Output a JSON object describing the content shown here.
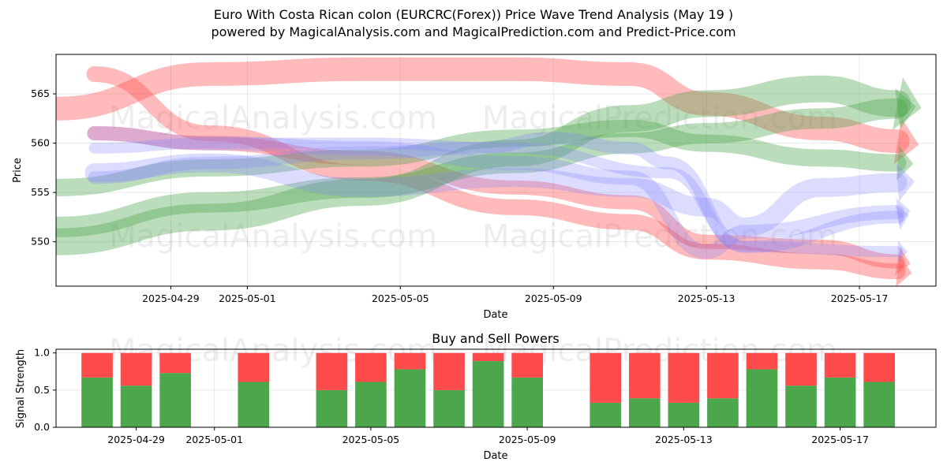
{
  "title_line1": "Euro With Costa Rican colon (EURCRC(Forex)) Price Wave Trend Analysis (May 19 )",
  "title_line2": "powered by MagicalAnalysis.com and MagicalPrediction.com and Predict-Price.com",
  "watermarks": [
    "MagicalAnalysis.com",
    "MagicalPrediction.com"
  ],
  "colors": {
    "red": "#ff4b4b",
    "green": "#4ca64c",
    "blue": "#8080ff"
  },
  "chart_data": [
    {
      "type": "line",
      "title": "",
      "xlabel": "Date",
      "ylabel": "Price",
      "x_ticks": [
        "2025-04-29",
        "2025-05-01",
        "2025-05-05",
        "2025-05-09",
        "2025-05-13",
        "2025-05-17"
      ],
      "y_ticks": [
        550,
        555,
        560,
        565
      ],
      "xlim": [
        "2025-04-26",
        "2025-05-19"
      ],
      "ylim": [
        545.5,
        569
      ],
      "grid": true,
      "series": [
        {
          "color": "red",
          "x": [
            "2025-04-26",
            "2025-04-30",
            "2025-05-04",
            "2025-05-08",
            "2025-05-11",
            "2025-05-13",
            "2025-05-16",
            "2025-05-18"
          ],
          "y": [
            563.5,
            567,
            567.5,
            567.5,
            567,
            564,
            561.5,
            560.2
          ]
        },
        {
          "color": "red",
          "x": [
            "2025-04-27",
            "2025-04-30",
            "2025-05-04",
            "2025-05-08",
            "2025-05-11",
            "2025-05-13",
            "2025-05-16",
            "2025-05-18"
          ],
          "y": [
            567,
            561,
            557,
            553.5,
            552,
            549,
            548,
            547
          ]
        },
        {
          "color": "red",
          "x": [
            "2025-04-27",
            "2025-04-30",
            "2025-05-04",
            "2025-05-08",
            "2025-05-11",
            "2025-05-13",
            "2025-05-16",
            "2025-05-18"
          ],
          "y": [
            561,
            560,
            558.5,
            555.5,
            554,
            550,
            549.5,
            548
          ]
        },
        {
          "color": "green",
          "x": [
            "2025-04-26",
            "2025-04-30",
            "2025-05-04",
            "2025-05-08",
            "2025-05-11",
            "2025-05-13",
            "2025-05-16",
            "2025-05-18"
          ],
          "y": [
            551.5,
            554,
            555.5,
            558,
            560,
            561,
            562.5,
            563.5
          ]
        },
        {
          "color": "green",
          "x": [
            "2025-04-26",
            "2025-04-30",
            "2025-05-04",
            "2025-05-08",
            "2025-05-11",
            "2025-05-13",
            "2025-05-16",
            "2025-05-18"
          ],
          "y": [
            550,
            552.5,
            555,
            559,
            562.5,
            564,
            565.5,
            564
          ]
        },
        {
          "color": "green",
          "x": [
            "2025-04-26",
            "2025-04-30",
            "2025-05-04",
            "2025-05-08",
            "2025-05-11",
            "2025-05-13",
            "2025-05-16",
            "2025-05-18"
          ],
          "y": [
            555.5,
            557.5,
            558.5,
            560.5,
            561.5,
            560,
            558.5,
            558
          ]
        },
        {
          "color": "blue",
          "x": [
            "2025-04-27",
            "2025-04-30",
            "2025-05-04",
            "2025-05-07",
            "2025-05-09",
            "2025-05-11",
            "2025-05-12",
            "2025-05-14",
            "2025-05-18"
          ],
          "y": [
            556.5,
            558,
            559,
            559.5,
            560.5,
            559.5,
            558,
            549.5,
            552.5
          ]
        },
        {
          "color": "blue",
          "x": [
            "2025-04-27",
            "2025-04-30",
            "2025-05-04",
            "2025-05-08",
            "2025-05-11",
            "2025-05-13",
            "2025-05-14",
            "2025-05-18"
          ],
          "y": [
            561,
            560,
            559.5,
            558,
            556.5,
            549,
            551,
            553
          ]
        },
        {
          "color": "blue",
          "x": [
            "2025-04-27",
            "2025-04-30",
            "2025-05-04",
            "2025-05-08",
            "2025-05-11",
            "2025-05-13",
            "2025-05-14",
            "2025-05-16",
            "2025-05-18"
          ],
          "y": [
            557,
            558,
            555.5,
            556.5,
            555.5,
            553.5,
            551.5,
            555.5,
            556
          ]
        },
        {
          "color": "blue",
          "x": [
            "2025-04-27",
            "2025-04-30",
            "2025-05-04",
            "2025-05-08",
            "2025-05-12",
            "2025-05-14",
            "2025-05-18"
          ],
          "y": [
            559.5,
            560,
            560,
            559.5,
            557,
            549.5,
            549
          ]
        }
      ]
    },
    {
      "type": "bar",
      "title": "Buy and Sell Powers",
      "xlabel": "Date",
      "ylabel": "Signal Strength",
      "x_ticks": [
        "2025-04-29",
        "2025-05-01",
        "2025-05-05",
        "2025-05-09",
        "2025-05-13",
        "2025-05-17"
      ],
      "y_ticks": [
        "0.0",
        "0.5",
        "1.0"
      ],
      "ylim": [
        0,
        1.05
      ],
      "categories": [
        "2025-04-28",
        "2025-04-29",
        "2025-04-30",
        "2025-05-02",
        "2025-05-04",
        "2025-05-05",
        "2025-05-06",
        "2025-05-07",
        "2025-05-08",
        "2025-05-09",
        "2025-05-11",
        "2025-05-12",
        "2025-05-13",
        "2025-05-14",
        "2025-05-15",
        "2025-05-16",
        "2025-05-17",
        "2025-05-18"
      ],
      "series": [
        {
          "color": "green",
          "values": [
            0.67,
            0.56,
            0.73,
            0.61,
            0.5,
            0.61,
            0.78,
            0.5,
            0.89,
            0.67,
            0.33,
            0.39,
            0.33,
            0.39,
            0.78,
            0.56,
            0.67,
            0.61
          ]
        },
        {
          "color": "red",
          "values": [
            0.33,
            0.44,
            0.27,
            0.39,
            0.5,
            0.39,
            0.22,
            0.5,
            0.11,
            0.33,
            0.67,
            0.61,
            0.67,
            0.61,
            0.22,
            0.44,
            0.33,
            0.39
          ]
        }
      ]
    }
  ]
}
